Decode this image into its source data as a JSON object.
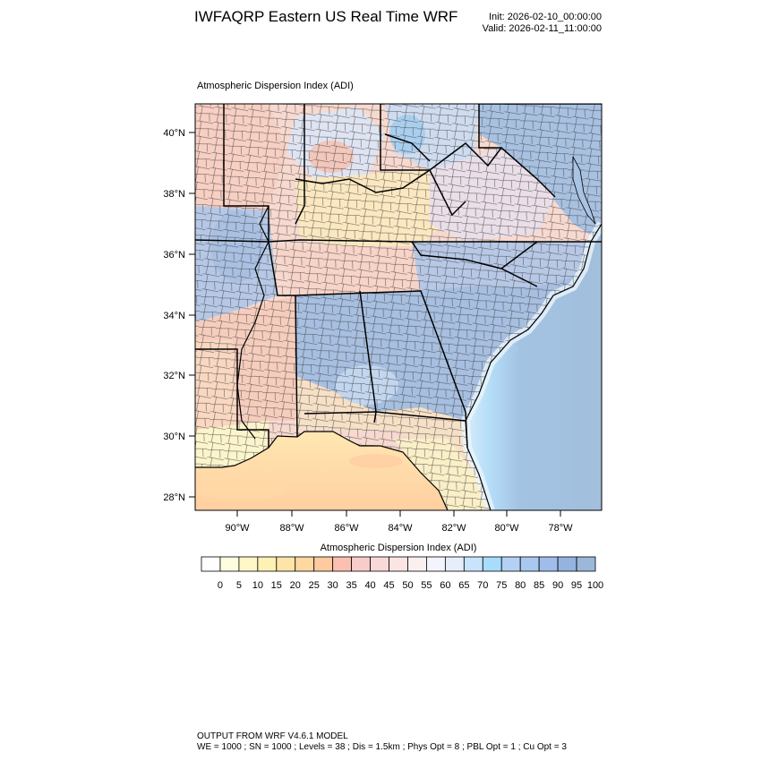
{
  "header": {
    "title": "IWFAQRP Eastern US Real Time WRF",
    "init": "Init: 2026-02-10_00:00:00",
    "valid": "Valid: 2026-02-11_11:00:00"
  },
  "plot": {
    "label": "Atmospheric Dispersion Index   (ADI)",
    "lat_ticks": [
      "40°N",
      "38°N",
      "36°N",
      "34°N",
      "32°N",
      "30°N",
      "28°N"
    ],
    "lon_ticks": [
      "90°W",
      "88°W",
      "86°W",
      "84°W",
      "82°W",
      "80°W",
      "78°W"
    ]
  },
  "colorbar": {
    "title": "Atmospheric Dispersion Index  (ADI)",
    "labels": [
      "0",
      "5",
      "10",
      "15",
      "20",
      "25",
      "30",
      "35",
      "40",
      "45",
      "50",
      "55",
      "60",
      "65",
      "70",
      "75",
      "80",
      "85",
      "90",
      "95",
      "100"
    ],
    "colors": [
      "#ffffff",
      "#fffde0",
      "#fff6c8",
      "#fff0b4",
      "#ffe4a8",
      "#ffd8a0",
      "#ffcaa0",
      "#fcc0b0",
      "#f8ccc8",
      "#f8d8d8",
      "#fae4e4",
      "#faf0f0",
      "#f4f4fc",
      "#e6eefc",
      "#c8e4fc",
      "#a8dcfc",
      "#b4d0f4",
      "#a8c8f0",
      "#a0bcea",
      "#94b4e0",
      "#9cb8d8"
    ]
  },
  "footer": {
    "line1": "OUTPUT FROM WRF V4.6.1 MODEL",
    "line2": "WE = 1000 ; SN = 1000 ; Levels = 38 ; Dis = 1.5km ; Phys Opt = 8 ; PBL Opt = 1 ; Cu Opt = 3"
  }
}
